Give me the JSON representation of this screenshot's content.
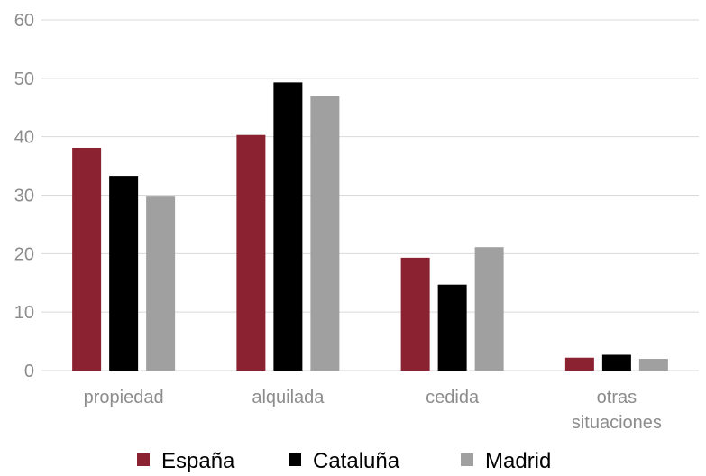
{
  "chart_data": {
    "type": "bar",
    "categories": [
      [
        "propiedad"
      ],
      [
        "alquilada"
      ],
      [
        "cedida"
      ],
      [
        "otras",
        "situaciones"
      ]
    ],
    "series": [
      {
        "name": "España",
        "color": "#8b2232",
        "values": [
          38.1,
          40.3,
          19.3,
          2.2
        ]
      },
      {
        "name": "Cataluña",
        "color": "#000000",
        "values": [
          33.3,
          49.3,
          14.7,
          2.7
        ]
      },
      {
        "name": "Madrid",
        "color": "#a0a0a0",
        "values": [
          29.9,
          46.9,
          21.1,
          2.0
        ]
      }
    ],
    "ylim": [
      0,
      60
    ],
    "yticks": [
      "0",
      "10",
      "20",
      "30",
      "40",
      "50",
      "60"
    ],
    "grid": true,
    "legend_position": "bottom"
  }
}
